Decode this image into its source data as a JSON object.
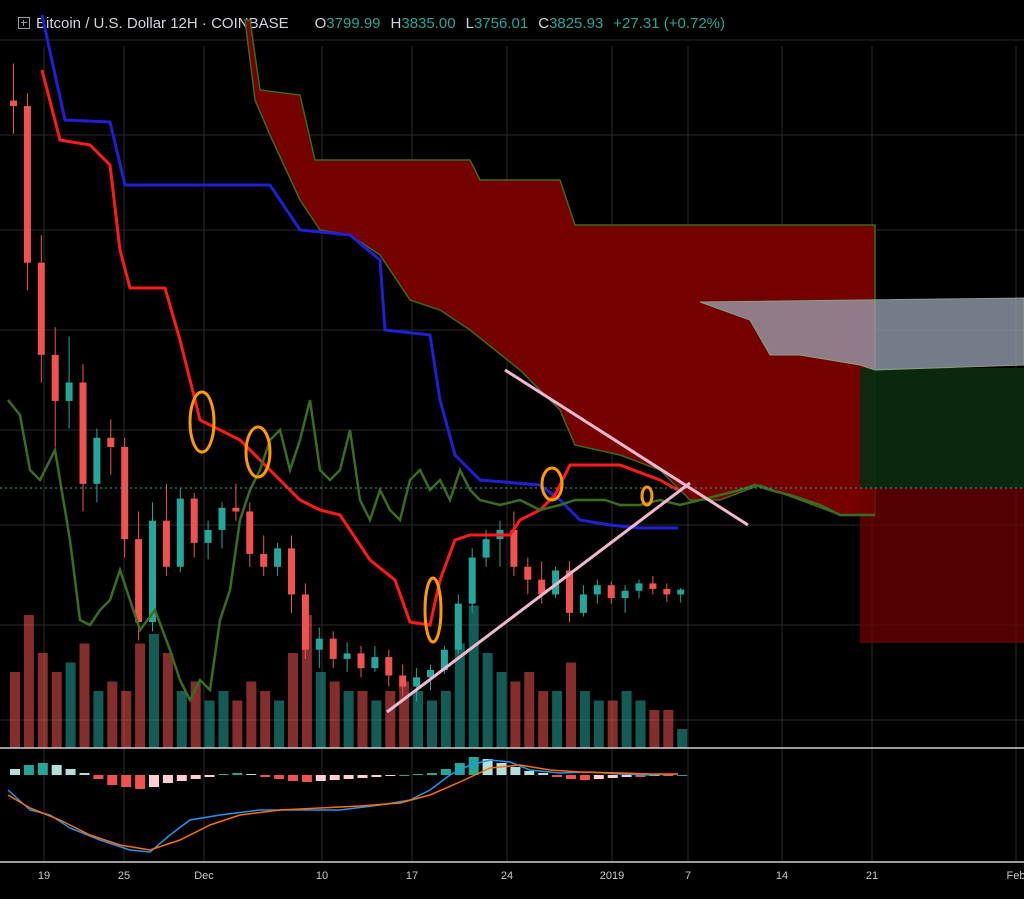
{
  "header": {
    "symbol": "Bitcoin / U.S. Dollar",
    "interval": "12H",
    "exchange": "COINBASE",
    "ohlc": [
      {
        "k": "O",
        "v": "3799.99"
      },
      {
        "k": "H",
        "v": "3835.00"
      },
      {
        "k": "L",
        "v": "3756.01"
      },
      {
        "k": "C",
        "v": "3825.93"
      }
    ],
    "change": "+27.31 (+0.72%)"
  },
  "colors": {
    "up": "#26a69a",
    "down": "#ef5350",
    "cloud": "#8b0000",
    "kijun": "#1f1fd6",
    "tenkan": "#ff1a1a",
    "lagging": "#3a6e1f",
    "trendline": "#f0b7d0",
    "highlight": "#ff9900",
    "macd": "#2196f3",
    "signal": "#ff6d00"
  },
  "chart_data": {
    "type": "candlestick",
    "x_ticks": [
      "19",
      "25",
      "Dec",
      "10",
      "17",
      "24",
      "2019",
      "7",
      "14",
      "21",
      "Feb"
    ],
    "price": [
      [
        6480,
        6680,
        6300,
        6450
      ],
      [
        6450,
        6520,
        5450,
        5600
      ],
      [
        5600,
        5750,
        4950,
        5100
      ],
      [
        5100,
        5250,
        4600,
        4850
      ],
      [
        4850,
        5200,
        4700,
        4950
      ],
      [
        4950,
        5050,
        4250,
        4400
      ],
      [
        4400,
        4700,
        4300,
        4650
      ],
      [
        4650,
        4750,
        4450,
        4600
      ],
      [
        4600,
        4650,
        4000,
        4100
      ],
      [
        4100,
        4250,
        3550,
        3650
      ],
      [
        3650,
        4300,
        3600,
        4200
      ],
      [
        4200,
        4400,
        3900,
        3950
      ],
      [
        3950,
        4380,
        3920,
        4320
      ],
      [
        4320,
        4350,
        4000,
        4080
      ],
      [
        4080,
        4200,
        3990,
        4150
      ],
      [
        4150,
        4300,
        4050,
        4270
      ],
      [
        4270,
        4400,
        4200,
        4250
      ],
      [
        4250,
        4300,
        3950,
        4020
      ],
      [
        4020,
        4120,
        3900,
        3950
      ],
      [
        3950,
        4080,
        3900,
        4050
      ],
      [
        4050,
        4120,
        3700,
        3800
      ],
      [
        3800,
        3860,
        3450,
        3500
      ],
      [
        3500,
        3620,
        3400,
        3560
      ],
      [
        3560,
        3600,
        3400,
        3450
      ],
      [
        3450,
        3540,
        3380,
        3480
      ],
      [
        3480,
        3520,
        3350,
        3400
      ],
      [
        3400,
        3520,
        3380,
        3460
      ],
      [
        3460,
        3500,
        3300,
        3360
      ],
      [
        3360,
        3420,
        3250,
        3300
      ],
      [
        3300,
        3400,
        3220,
        3350
      ],
      [
        3350,
        3420,
        3280,
        3390
      ],
      [
        3390,
        3520,
        3370,
        3500
      ],
      [
        3500,
        3800,
        3480,
        3750
      ],
      [
        3750,
        4050,
        3700,
        4000
      ],
      [
        4000,
        4150,
        3950,
        4100
      ],
      [
        4100,
        4200,
        3950,
        4150
      ],
      [
        4150,
        4250,
        3900,
        3950
      ],
      [
        3950,
        4000,
        3800,
        3880
      ],
      [
        3880,
        3980,
        3750,
        3800
      ],
      [
        3800,
        3950,
        3780,
        3930
      ],
      [
        3930,
        3980,
        3650,
        3700
      ],
      [
        3700,
        3850,
        3680,
        3800
      ],
      [
        3800,
        3880,
        3750,
        3850
      ],
      [
        3850,
        3870,
        3750,
        3780
      ],
      [
        3780,
        3850,
        3700,
        3820
      ],
      [
        3820,
        3880,
        3780,
        3860
      ],
      [
        3860,
        3900,
        3800,
        3830
      ],
      [
        3830,
        3860,
        3760,
        3800
      ],
      [
        3800,
        3835,
        3756,
        3826
      ]
    ],
    "volume_relative": [
      0.4,
      0.7,
      0.5,
      0.4,
      0.45,
      0.55,
      0.3,
      0.35,
      0.3,
      0.55,
      0.6,
      0.5,
      0.3,
      0.35,
      0.25,
      0.3,
      0.25,
      0.35,
      0.3,
      0.25,
      0.5,
      0.7,
      0.4,
      0.35,
      0.3,
      0.3,
      0.25,
      0.3,
      0.35,
      0.3,
      0.25,
      0.3,
      0.55,
      0.75,
      0.5,
      0.4,
      0.35,
      0.4,
      0.3,
      0.3,
      0.45,
      0.3,
      0.25,
      0.25,
      0.3,
      0.25,
      0.2,
      0.2,
      0.1
    ],
    "macd_histogram_relative": [
      0.3,
      0.5,
      0.6,
      0.5,
      0.3,
      0.1,
      -0.2,
      -0.5,
      -0.6,
      -0.7,
      -0.6,
      -0.4,
      -0.3,
      -0.2,
      -0.1,
      0.05,
      0.1,
      0.05,
      -0.1,
      -0.2,
      -0.3,
      -0.35,
      -0.3,
      -0.25,
      -0.2,
      -0.15,
      -0.1,
      -0.05,
      0.0,
      0.05,
      0.1,
      0.3,
      0.6,
      0.9,
      0.8,
      0.6,
      0.4,
      0.2,
      0.1,
      -0.1,
      -0.2,
      -0.25,
      -0.2,
      -0.15,
      -0.1,
      -0.1,
      -0.05,
      -0.05,
      0.0
    ]
  }
}
